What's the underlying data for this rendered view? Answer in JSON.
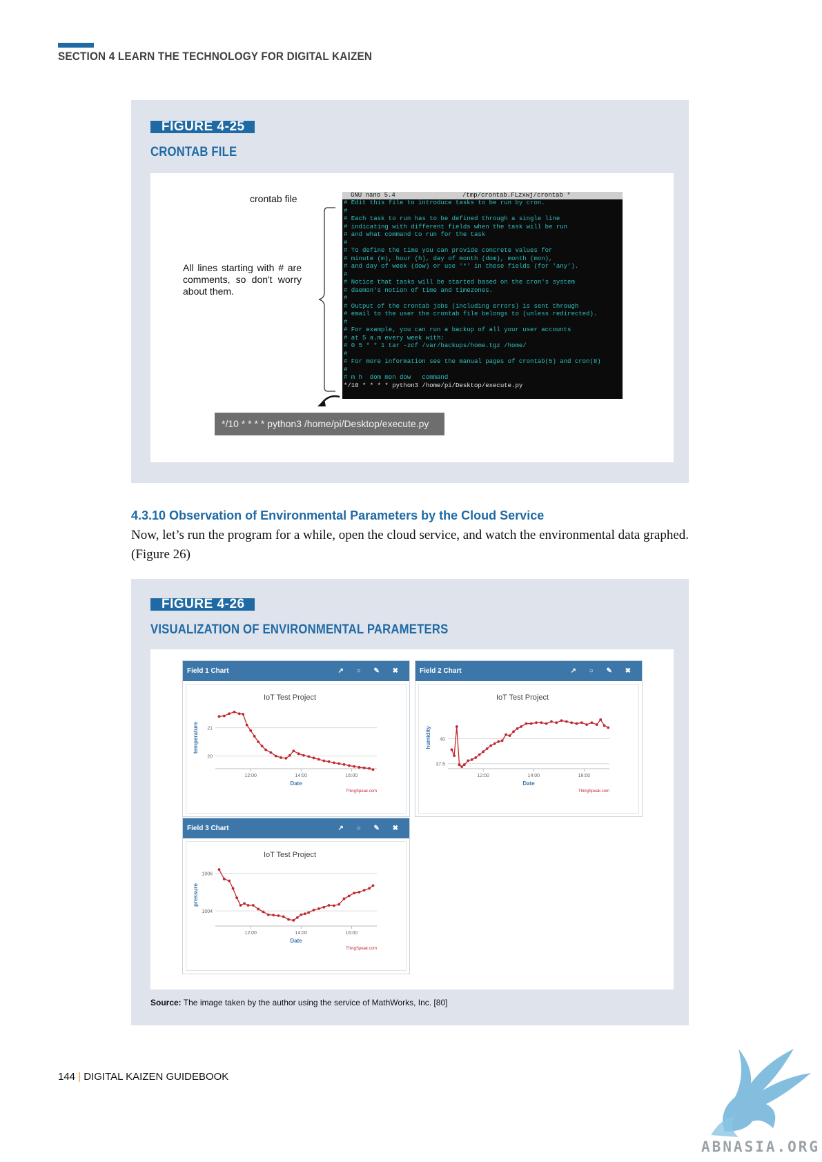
{
  "header": {
    "section_title": "SECTION 4  LEARN THE TECHNOLOGY FOR DIGITAL KAIZEN"
  },
  "figure25": {
    "tag": "FIGURE 4-25",
    "caption": "CRONTAB FILE",
    "crontab_label": "crontab file",
    "comment_note": "All lines starting with # are comments, so don't worry about them.",
    "terminal_header": "GNU nano 5.4                  /tmp/crontab.FLzxwj/crontab *",
    "terminal_lines": [
      "# Edit this file to introduce tasks to be run by cron.",
      "#",
      "# Each task to run has to be defined through a single line",
      "# indicating with different fields when the task will be run",
      "# and what command to run for the task",
      "#",
      "# To define the time you can provide concrete values for",
      "# minute (m), hour (h), day of month (dom), month (mon),",
      "# and day of week (dow) or use '*' in these fields (for 'any').",
      "#",
      "# Notice that tasks will be started based on the cron's system",
      "# daemon's notion of time and timezones.",
      "#",
      "# Output of the crontab jobs (including errors) is sent through",
      "# email to the user the crontab file belongs to (unless redirected).",
      "#",
      "# For example, you can run a backup of all your user accounts",
      "# at 5 a.m every week with:",
      "# 0 5 * * 1 tar -zcf /var/backups/home.tgz /home/",
      "#",
      "# For more information see the manual pages of crontab(5) and cron(8)",
      "#",
      "# m h  dom mon dow   command"
    ],
    "terminal_last_line": "*/10 * * * * python3 /home/pi/Desktop/execute.py",
    "command_box": "*/10 * * * * python3 /home/pi/Desktop/execute.py"
  },
  "section": {
    "heading": "4.3.10 Observation of Environmental Parameters by the Cloud Service",
    "body": "Now, let’s run the program for a while, open the cloud service, and watch the environmental data graphed. (Figure 26)"
  },
  "figure26": {
    "tag": "FIGURE 4-26",
    "caption": "VISUALIZATION OF ENVIRONMENTAL PARAMETERS",
    "source_label": "Source:",
    "source_text": " The image taken by the author using the service of MathWorks, Inc. [80]",
    "panel_icons": "↗ ○ ✎ ✖"
  },
  "chart_data": [
    {
      "type": "line",
      "panel_title": "Field 1 Chart",
      "title": "IoT Test Project",
      "xlabel": "Date",
      "ylabel": "temperature",
      "credit": "ThingSpeak.com",
      "color": "#c0282e",
      "x_ticks": [
        "12:00",
        "14:00",
        "16:00"
      ],
      "y_ticks": [
        20,
        21
      ],
      "xlim": [
        10.6,
        17.0
      ],
      "ylim": [
        19.55,
        21.75
      ],
      "x": [
        10.75,
        10.95,
        11.15,
        11.35,
        11.55,
        11.7,
        11.85,
        12.0,
        12.15,
        12.3,
        12.45,
        12.6,
        12.8,
        13.0,
        13.2,
        13.4,
        13.55,
        13.7,
        13.9,
        14.1,
        14.3,
        14.5,
        14.7,
        14.9,
        15.1,
        15.3,
        15.5,
        15.7,
        15.9,
        16.1,
        16.3,
        16.5,
        16.7,
        16.85
      ],
      "y": [
        21.4,
        21.42,
        21.5,
        21.56,
        21.5,
        21.48,
        21.1,
        20.9,
        20.7,
        20.5,
        20.35,
        20.22,
        20.12,
        20.0,
        19.94,
        19.92,
        20.02,
        20.18,
        20.08,
        20.02,
        19.98,
        19.93,
        19.88,
        19.83,
        19.8,
        19.76,
        19.73,
        19.7,
        19.66,
        19.63,
        19.6,
        19.58,
        19.56,
        19.52
      ]
    },
    {
      "type": "line",
      "panel_title": "Field 2 Chart",
      "title": "IoT Test Project",
      "xlabel": "Date",
      "ylabel": "humidity",
      "credit": "ThingSpeak.com",
      "color": "#c0282e",
      "x_ticks": [
        "12:00",
        "14:00",
        "16:00"
      ],
      "y_ticks": [
        37.5,
        40
      ],
      "xlim": [
        10.6,
        17.0
      ],
      "ylim": [
        37.0,
        43.2
      ],
      "x": [
        10.75,
        10.85,
        10.95,
        11.05,
        11.15,
        11.25,
        11.4,
        11.55,
        11.7,
        11.85,
        12.0,
        12.15,
        12.3,
        12.45,
        12.6,
        12.75,
        12.9,
        13.05,
        13.2,
        13.35,
        13.5,
        13.7,
        13.9,
        14.1,
        14.3,
        14.5,
        14.7,
        14.9,
        15.1,
        15.3,
        15.5,
        15.7,
        15.9,
        16.1,
        16.3,
        16.5,
        16.65,
        16.8,
        16.95
      ],
      "y": [
        38.9,
        38.3,
        41.2,
        37.4,
        37.2,
        37.4,
        37.8,
        37.9,
        38.1,
        38.4,
        38.7,
        39.0,
        39.3,
        39.5,
        39.7,
        39.8,
        40.4,
        40.3,
        40.7,
        41.0,
        41.2,
        41.5,
        41.5,
        41.6,
        41.6,
        41.5,
        41.7,
        41.6,
        41.8,
        41.7,
        41.6,
        41.5,
        41.6,
        41.4,
        41.6,
        41.4,
        41.9,
        41.3,
        41.1
      ]
    },
    {
      "type": "line",
      "panel_title": "Field 3 Chart",
      "title": "IoT Test Project",
      "xlabel": "Date",
      "ylabel": "pressure",
      "credit": "ThingSpeak.com",
      "color": "#c0282e",
      "x_ticks": [
        "12:00",
        "14:00",
        "16:00"
      ],
      "y_ticks": [
        1004,
        1006
      ],
      "xlim": [
        10.6,
        17.0
      ],
      "ylim": [
        1003.2,
        1006.5
      ],
      "x": [
        10.75,
        10.95,
        11.15,
        11.3,
        11.45,
        11.6,
        11.75,
        11.9,
        12.1,
        12.3,
        12.5,
        12.7,
        12.9,
        13.1,
        13.3,
        13.5,
        13.7,
        13.85,
        14.0,
        14.15,
        14.3,
        14.5,
        14.7,
        14.9,
        15.1,
        15.3,
        15.5,
        15.7,
        15.9,
        16.1,
        16.3,
        16.5,
        16.7,
        16.85
      ],
      "y": [
        1006.2,
        1005.7,
        1005.6,
        1005.2,
        1004.7,
        1004.3,
        1004.4,
        1004.3,
        1004.3,
        1004.1,
        1003.95,
        1003.8,
        1003.78,
        1003.75,
        1003.7,
        1003.55,
        1003.5,
        1003.65,
        1003.8,
        1003.85,
        1003.92,
        1004.05,
        1004.12,
        1004.2,
        1004.3,
        1004.28,
        1004.35,
        1004.65,
        1004.8,
        1004.95,
        1005.0,
        1005.1,
        1005.2,
        1005.35
      ]
    }
  ],
  "footer": {
    "page": "144",
    "separator": " | ",
    "title": "DIGITAL KAIZEN GUIDEBOOK"
  },
  "watermark": {
    "text": "ABNASIA.ORG"
  }
}
